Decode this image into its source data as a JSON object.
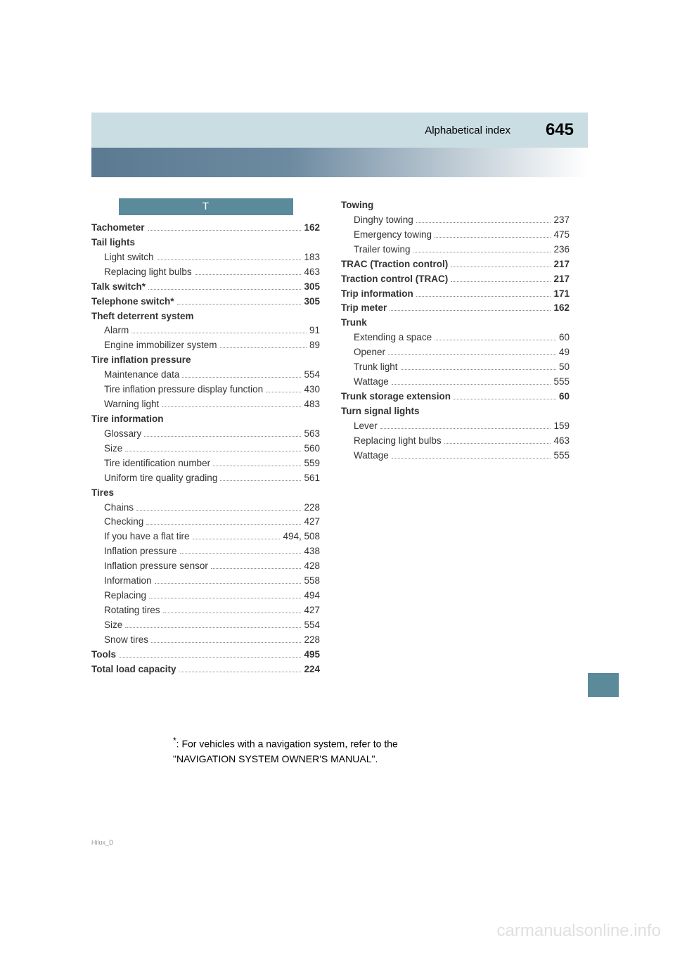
{
  "header": {
    "title": "Alphabetical index",
    "page_number": "645"
  },
  "section_letter": "T",
  "left_entries": [
    {
      "label": "Tachometer",
      "page": "162",
      "bold": true
    },
    {
      "label": "Tail lights",
      "bold": true
    },
    {
      "label": "Light switch",
      "page": "183",
      "sub": true
    },
    {
      "label": "Replacing light bulbs",
      "page": "463",
      "sub": true
    },
    {
      "label": "Talk switch",
      "page": "305",
      "bold": true,
      "star": true
    },
    {
      "label": "Telephone switch",
      "page": "305",
      "bold": true,
      "star": true
    },
    {
      "label": "Theft deterrent system",
      "bold": true
    },
    {
      "label": "Alarm",
      "page": "91",
      "sub": true
    },
    {
      "label": "Engine immobilizer system",
      "page": "89",
      "sub": true
    },
    {
      "label": "Tire inflation pressure",
      "bold": true
    },
    {
      "label": "Maintenance data",
      "page": "554",
      "sub": true
    },
    {
      "label": "Tire inflation pressure display function",
      "page": "430",
      "sub": true
    },
    {
      "label": "Warning light",
      "page": "483",
      "sub": true
    },
    {
      "label": "Tire information",
      "bold": true
    },
    {
      "label": "Glossary",
      "page": "563",
      "sub": true
    },
    {
      "label": "Size",
      "page": "560",
      "sub": true
    },
    {
      "label": "Tire identification number",
      "page": "559",
      "sub": true
    },
    {
      "label": "Uniform tire quality grading",
      "page": "561",
      "sub": true
    },
    {
      "label": "Tires",
      "bold": true
    },
    {
      "label": "Chains",
      "page": "228",
      "sub": true
    },
    {
      "label": "Checking",
      "page": "427",
      "sub": true
    },
    {
      "label": "If you have a flat tire",
      "page": "494, 508",
      "sub": true
    },
    {
      "label": "Inflation pressure",
      "page": "438",
      "sub": true
    },
    {
      "label": "Inflation pressure sensor",
      "page": "428",
      "sub": true
    },
    {
      "label": "Information",
      "page": "558",
      "sub": true
    },
    {
      "label": "Replacing",
      "page": "494",
      "sub": true
    },
    {
      "label": "Rotating tires",
      "page": "427",
      "sub": true
    },
    {
      "label": "Size",
      "page": "554",
      "sub": true
    },
    {
      "label": "Snow tires",
      "page": "228",
      "sub": true
    },
    {
      "label": "Tools",
      "page": "495",
      "bold": true
    },
    {
      "label": "Total load capacity",
      "page": "224",
      "bold": true
    }
  ],
  "right_entries": [
    {
      "label": "Towing",
      "bold": true
    },
    {
      "label": "Dinghy towing",
      "page": "237",
      "sub": true
    },
    {
      "label": "Emergency towing",
      "page": "475",
      "sub": true
    },
    {
      "label": "Trailer towing",
      "page": "236",
      "sub": true
    },
    {
      "label": "TRAC (Traction control)",
      "page": "217",
      "bold": true
    },
    {
      "label": "Traction control (TRAC)",
      "page": "217",
      "bold": true
    },
    {
      "label": "Trip information",
      "page": "171",
      "bold": true
    },
    {
      "label": "Trip meter",
      "page": "162",
      "bold": true
    },
    {
      "label": "Trunk",
      "bold": true
    },
    {
      "label": "Extending a space",
      "page": "60",
      "sub": true
    },
    {
      "label": "Opener",
      "page": "49",
      "sub": true
    },
    {
      "label": "Trunk light",
      "page": "50",
      "sub": true
    },
    {
      "label": "Wattage",
      "page": "555",
      "sub": true
    },
    {
      "label": "Trunk storage extension",
      "page": "60",
      "bold": true
    },
    {
      "label": "Turn signal lights",
      "bold": true
    },
    {
      "label": "Lever",
      "page": "159",
      "sub": true
    },
    {
      "label": "Replacing light bulbs",
      "page": "463",
      "sub": true
    },
    {
      "label": "Wattage",
      "page": "555",
      "sub": true
    }
  ],
  "footnote": {
    "text1": ": For vehicles with a navigation system, refer to the",
    "text2": "\"NAVIGATION SYSTEM OWNER'S MANUAL\"."
  },
  "watermark": "carmanualsonline.info",
  "doc_code": "Hilux_D",
  "colors": {
    "header_bg": "#cadde2",
    "tab_bg": "#5b8a9a",
    "gradient_start": "#5b7a91",
    "text": "#333333"
  }
}
